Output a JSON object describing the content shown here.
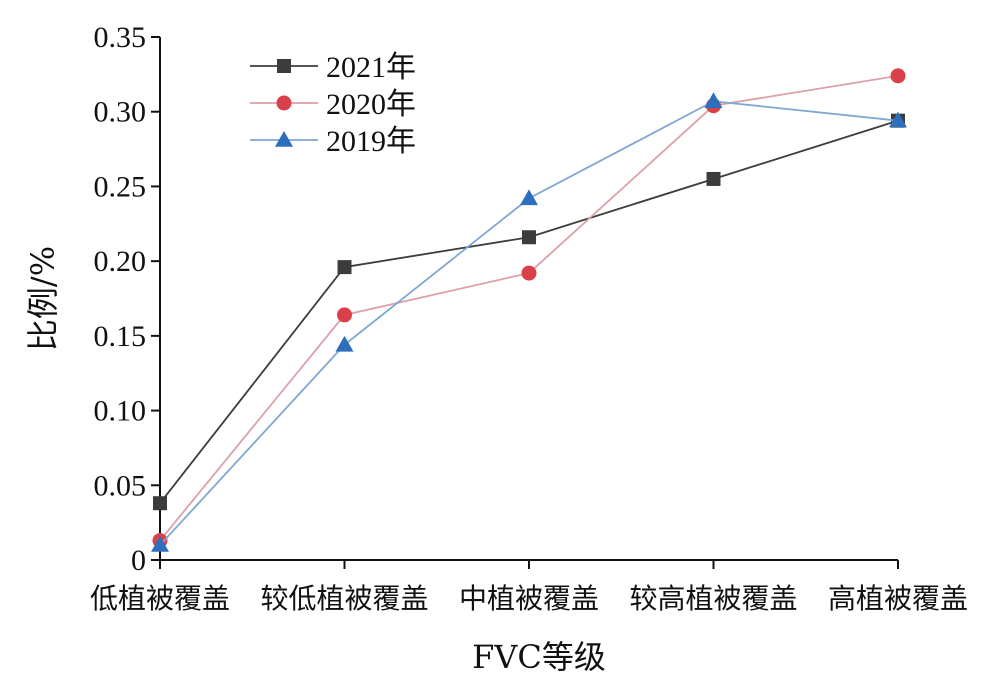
{
  "chart_data": {
    "type": "line",
    "title": "",
    "xlabel": "FVC等级",
    "ylabel": "比例/%",
    "categories": [
      "低植被覆盖",
      "较低植被覆盖",
      "中植被覆盖",
      "较高植被覆盖",
      "高植被覆盖"
    ],
    "ylim": [
      0,
      0.35
    ],
    "yticks": [
      0,
      0.05,
      0.1,
      0.15,
      0.2,
      0.25,
      0.3,
      0.35
    ],
    "ytick_labels": [
      "0",
      "0.05",
      "0.10",
      "0.15",
      "0.20",
      "0.25",
      "0.30",
      "0.35"
    ],
    "grid": false,
    "legend_position": "top-left",
    "series": [
      {
        "name": "2021年",
        "values": [
          0.038,
          0.196,
          0.216,
          0.255,
          0.294
        ],
        "color": "#3c3c3c",
        "marker": "square",
        "line_color": "#3c3c3c"
      },
      {
        "name": "2020年",
        "values": [
          0.013,
          0.164,
          0.192,
          0.304,
          0.324
        ],
        "color": "#d9404a",
        "marker": "circle",
        "line_color": "#dba0a8"
      },
      {
        "name": "2019年",
        "values": [
          0.01,
          0.144,
          0.242,
          0.307,
          0.294
        ],
        "color": "#2d6fbd",
        "marker": "triangle",
        "line_color": "#7ea7d2"
      }
    ]
  }
}
